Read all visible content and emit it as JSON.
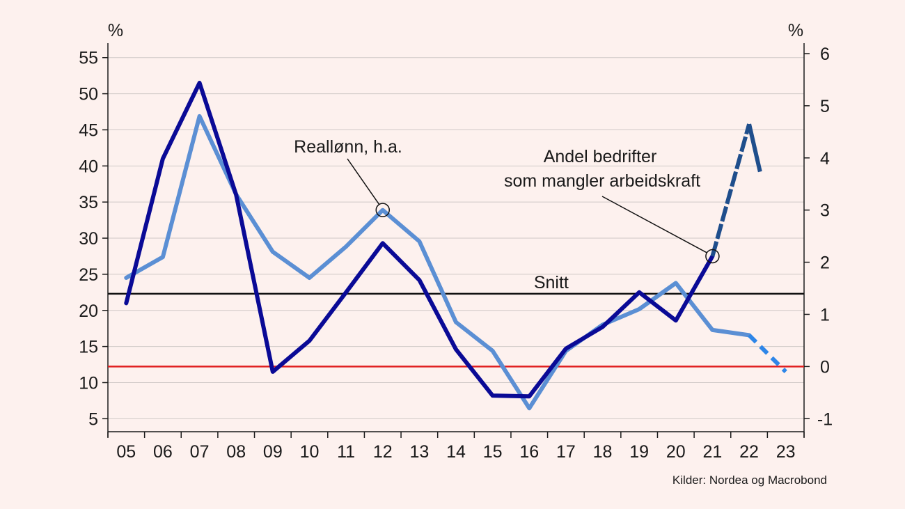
{
  "chart_data": {
    "type": "line",
    "left_unit": "%",
    "right_unit": "%",
    "x_ticks": [
      "05",
      "06",
      "07",
      "08",
      "09",
      "10",
      "11",
      "12",
      "13",
      "14",
      "15",
      "16",
      "17",
      "18",
      "19",
      "20",
      "21",
      "22",
      "23"
    ],
    "y_left": {
      "ticks": [
        5,
        10,
        15,
        20,
        25,
        30,
        35,
        40,
        45,
        50,
        55
      ],
      "range": [
        3.2,
        57
      ]
    },
    "y_right": {
      "ticks": [
        -1,
        0,
        1,
        2,
        3,
        4,
        5,
        6
      ],
      "range": [
        -1.25,
        6.2
      ]
    },
    "grid": true,
    "series": [
      {
        "name": "Andel bedrifter som mangler arbeidskraft",
        "axis": "left",
        "color": "#0a0a96",
        "solid_x": [
          5,
          6,
          7,
          8,
          9,
          10,
          11,
          12,
          13,
          14,
          15,
          16,
          17,
          18,
          19,
          20,
          21
        ],
        "solid_y": [
          21,
          41,
          51.5,
          36,
          11.5,
          15.8,
          22.5,
          29.3,
          24.2,
          14.6,
          8.2,
          8.1,
          14.7,
          17.7,
          22.5,
          18.6,
          27.5
        ],
        "dashed_x": [
          21,
          22
        ],
        "dashed_y": [
          27.5,
          45.8
        ],
        "last_x": [
          22,
          22.3
        ],
        "last_y": [
          45.8,
          39.2
        ],
        "last_color": "#1f4e8c"
      },
      {
        "name": "Reallønn, h.a.",
        "axis": "right",
        "color": "#5b8fd4",
        "solid_x": [
          5,
          6,
          7,
          8,
          9,
          10,
          11,
          12,
          13,
          14,
          15,
          16,
          17,
          18,
          19,
          20,
          21,
          22
        ],
        "solid_y": [
          1.7,
          2.1,
          4.8,
          3.3,
          2.2,
          1.7,
          2.3,
          3.0,
          2.4,
          0.85,
          0.3,
          -0.8,
          0.3,
          0.8,
          1.1,
          1.6,
          0.7,
          0.6
        ],
        "dashed_x": [
          22,
          23
        ],
        "dashed_y": [
          0.6,
          -0.1
        ],
        "dashed_color": "#2e86e8"
      }
    ],
    "reference_lines": [
      {
        "label": "Snitt",
        "axis": "left",
        "value": 22.3,
        "color": "#111111"
      },
      {
        "label": "",
        "axis": "right",
        "value": 0,
        "color": "#e01e1e"
      }
    ],
    "annotations": [
      {
        "text": "Reallønn, h.a.",
        "series": 1,
        "x": 12,
        "y": 3.0
      },
      {
        "text": "Andel bedrifter",
        "text2": "som mangler arbeidskraft",
        "series": 0,
        "x": 21,
        "y": 27.5
      }
    ],
    "source": "Kilder: Nordea og Macrobond"
  }
}
